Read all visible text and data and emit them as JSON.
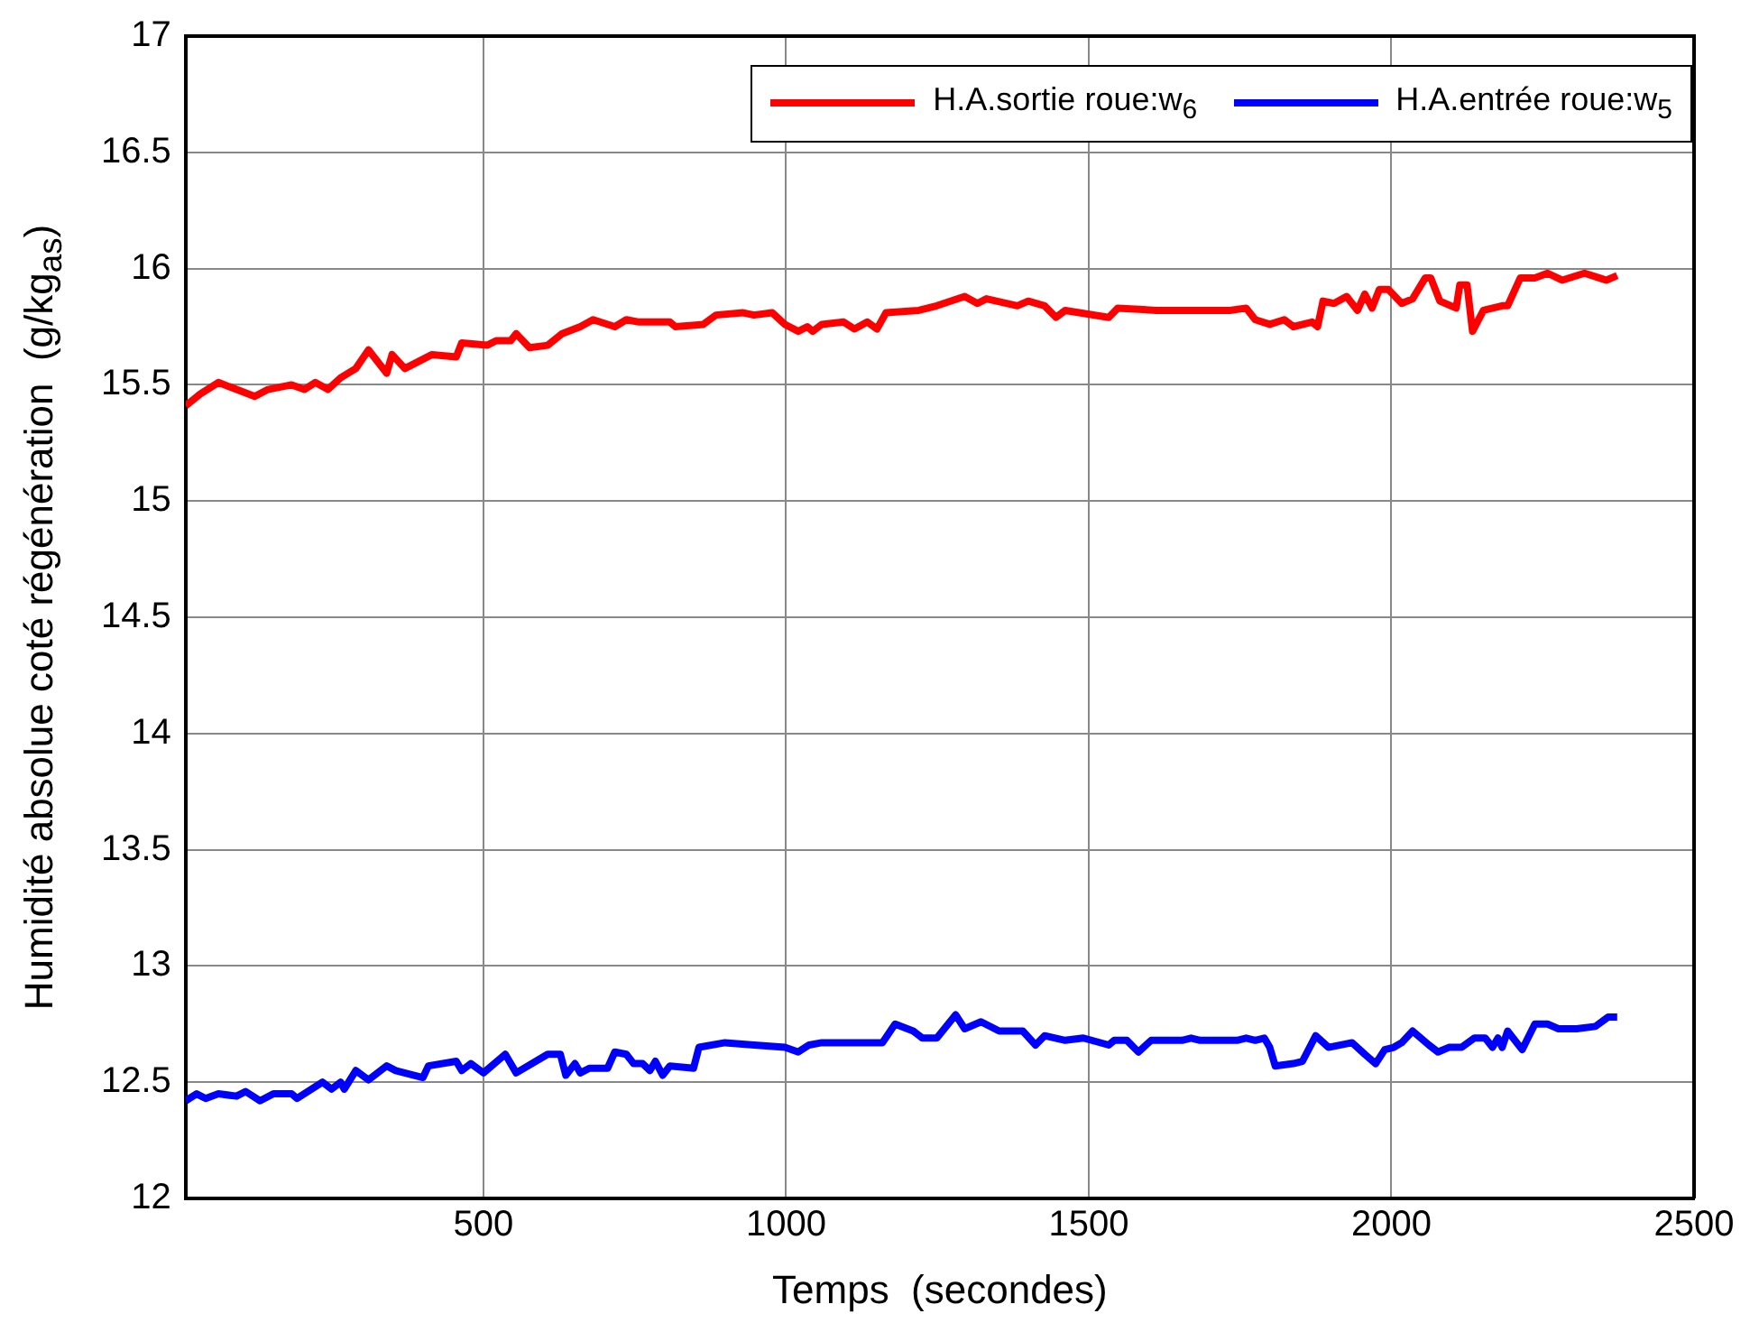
{
  "chart_data": {
    "type": "line",
    "xlabel": "Temps  (secondes)",
    "ylabel": "Humidité absolue coté régénération  (g/kg$_{as}$)",
    "xlim": [
      8,
      2500
    ],
    "xticks": [
      500,
      1000,
      1500,
      2000,
      2500
    ],
    "ylim": [
      12,
      17
    ],
    "yticks": [
      12,
      12.5,
      13,
      13.5,
      14,
      14.5,
      15,
      15.5,
      16,
      16.5,
      17
    ],
    "grid": true,
    "legend": "top right",
    "marker": "none",
    "line_style": "solid",
    "series": [
      {
        "name": "H.A.sortie roue:w$_{6}$",
        "color": "#ff0000",
        "x": [
          8,
          32,
          62,
          92,
          122,
          144,
          183,
          204,
          222,
          243,
          264,
          289,
          310,
          340,
          349,
          370,
          415,
          455,
          464,
          506,
          521,
          545,
          554,
          576,
          606,
          630,
          660,
          681,
          717,
          736,
          757,
          808,
          817,
          863,
          884,
          929,
          947,
          977,
          998,
          1020,
          1035,
          1044,
          1059,
          1095,
          1113,
          1134,
          1150,
          1165,
          1219,
          1249,
          1295,
          1316,
          1331,
          1382,
          1400,
          1427,
          1446,
          1461,
          1533,
          1548,
          1612,
          1672,
          1733,
          1760,
          1775,
          1799,
          1823,
          1838,
          1869,
          1878,
          1887,
          1905,
          1926,
          1944,
          1956,
          1968,
          1980,
          1995,
          2017,
          2035,
          2056,
          2065,
          2080,
          2107,
          2113,
          2125,
          2134,
          2152,
          2183,
          2192,
          2213,
          2237,
          2258,
          2282,
          2319,
          2343,
          2355,
          2373
        ],
        "values": [
          15.41,
          15.46,
          15.51,
          15.48,
          15.45,
          15.48,
          15.5,
          15.48,
          15.51,
          15.48,
          15.53,
          15.57,
          15.65,
          15.55,
          15.63,
          15.57,
          15.63,
          15.62,
          15.68,
          15.67,
          15.69,
          15.69,
          15.72,
          15.66,
          15.67,
          15.72,
          15.75,
          15.78,
          15.75,
          15.78,
          15.77,
          15.77,
          15.75,
          15.76,
          15.8,
          15.81,
          15.8,
          15.81,
          15.76,
          15.73,
          15.75,
          15.73,
          15.76,
          15.77,
          15.74,
          15.77,
          15.74,
          15.81,
          15.82,
          15.84,
          15.88,
          15.85,
          15.87,
          15.84,
          15.86,
          15.84,
          15.79,
          15.82,
          15.79,
          15.83,
          15.82,
          15.82,
          15.82,
          15.83,
          15.78,
          15.76,
          15.78,
          15.75,
          15.77,
          15.75,
          15.86,
          15.85,
          15.88,
          15.82,
          15.89,
          15.83,
          15.91,
          15.91,
          15.85,
          15.87,
          15.96,
          15.96,
          15.86,
          15.83,
          15.93,
          15.93,
          15.73,
          15.82,
          15.84,
          15.84,
          15.96,
          15.96,
          15.98,
          15.95,
          15.98,
          15.96,
          15.95,
          15.97
        ]
      },
      {
        "name": "H.A.entrée roue:w$_{5}$",
        "color": "#0000ff",
        "x": [
          8,
          26,
          41,
          62,
          92,
          107,
          131,
          153,
          183,
          192,
          234,
          249,
          264,
          270,
          289,
          310,
          340,
          355,
          400,
          409,
          455,
          464,
          479,
          500,
          536,
          554,
          606,
          627,
          636,
          651,
          660,
          675,
          705,
          717,
          736,
          748,
          763,
          775,
          784,
          796,
          808,
          847,
          856,
          899,
          947,
          998,
          1020,
          1038,
          1059,
          1159,
          1180,
          1210,
          1225,
          1249,
          1280,
          1295,
          1322,
          1352,
          1391,
          1412,
          1427,
          1461,
          1491,
          1533,
          1542,
          1563,
          1582,
          1603,
          1654,
          1669,
          1684,
          1745,
          1760,
          1775,
          1790,
          1799,
          1808,
          1838,
          1853,
          1875,
          1896,
          1935,
          1956,
          1974,
          1989,
          2004,
          2017,
          2035,
          2062,
          2077,
          2095,
          2116,
          2137,
          2155,
          2167,
          2176,
          2183,
          2192,
          2216,
          2237,
          2258,
          2276,
          2306,
          2337,
          2358,
          2373
        ],
        "values": [
          12.42,
          12.45,
          12.43,
          12.45,
          12.44,
          12.46,
          12.42,
          12.45,
          12.45,
          12.43,
          12.5,
          12.47,
          12.5,
          12.47,
          12.55,
          12.51,
          12.57,
          12.55,
          12.52,
          12.57,
          12.59,
          12.55,
          12.58,
          12.54,
          12.62,
          12.54,
          12.62,
          12.62,
          12.53,
          12.58,
          12.54,
          12.56,
          12.56,
          12.63,
          12.62,
          12.58,
          12.58,
          12.55,
          12.59,
          12.53,
          12.57,
          12.56,
          12.65,
          12.67,
          12.66,
          12.65,
          12.63,
          12.66,
          12.67,
          12.67,
          12.75,
          12.72,
          12.69,
          12.69,
          12.79,
          12.73,
          12.76,
          12.72,
          12.72,
          12.66,
          12.7,
          12.68,
          12.69,
          12.66,
          12.68,
          12.68,
          12.63,
          12.68,
          12.68,
          12.69,
          12.68,
          12.68,
          12.69,
          12.68,
          12.69,
          12.65,
          12.57,
          12.58,
          12.59,
          12.7,
          12.65,
          12.67,
          12.62,
          12.58,
          12.64,
          12.65,
          12.67,
          12.72,
          12.66,
          12.63,
          12.65,
          12.65,
          12.69,
          12.69,
          12.65,
          12.69,
          12.65,
          12.72,
          12.64,
          12.75,
          12.75,
          12.73,
          12.73,
          12.74,
          12.78,
          12.78
        ]
      }
    ]
  }
}
